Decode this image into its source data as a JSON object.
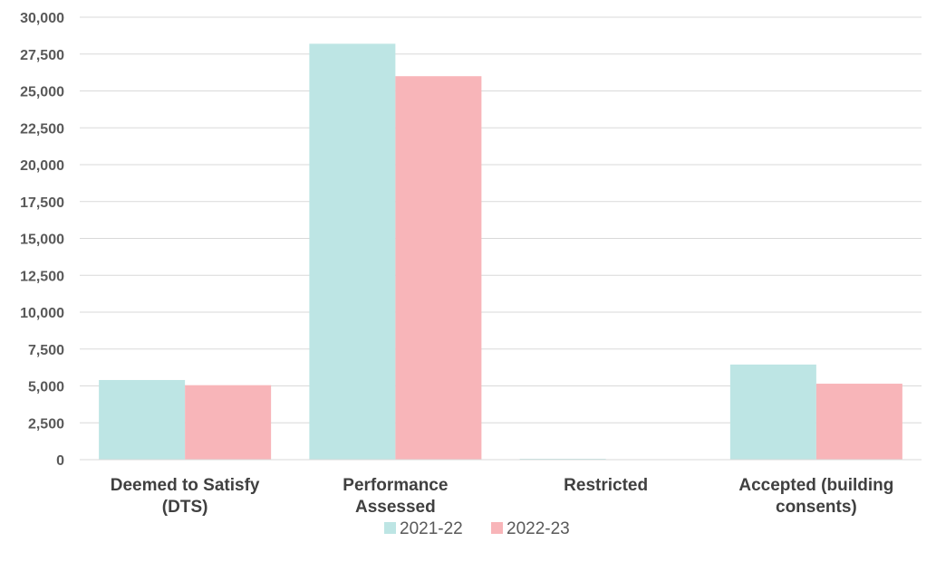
{
  "chart_data": {
    "type": "bar",
    "categories": [
      [
        "Deemed to Satisfy",
        "(DTS)"
      ],
      [
        "Performance",
        "Assessed"
      ],
      [
        "Restricted"
      ],
      [
        "Accepted (building",
        "consents)"
      ]
    ],
    "series": [
      {
        "name": "2021-22",
        "color": "#bde5e4",
        "values": [
          5400,
          28200,
          60,
          6450
        ]
      },
      {
        "name": "2022-23",
        "color": "#f8b5b9",
        "values": [
          5050,
          26000,
          20,
          5150
        ]
      }
    ],
    "y_ticks": [
      "0",
      "2,500",
      "5,000",
      "7,500",
      "10,000",
      "12,500",
      "15,000",
      "17,500",
      "20,000",
      "22,500",
      "25,000",
      "27,500",
      "30,000"
    ],
    "ylim": [
      0,
      30000
    ],
    "y_step": 2500,
    "grid": true,
    "gridline_color": "#d9d9d9",
    "legend_position": "bottom",
    "title": "",
    "xlabel": "",
    "ylabel": ""
  }
}
